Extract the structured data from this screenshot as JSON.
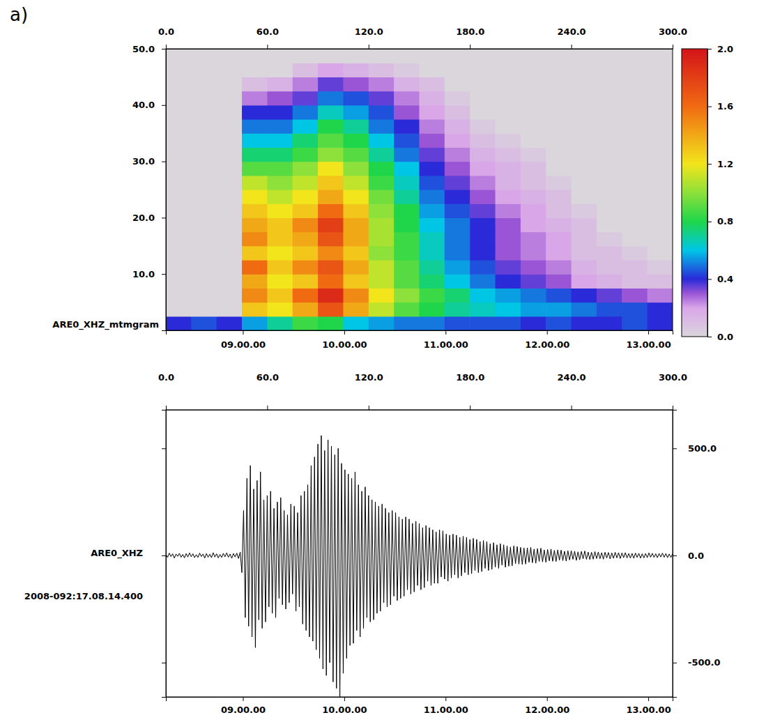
{
  "chart_data": [
    {
      "type": "heatmap",
      "title": "a)",
      "ylabel": "ARE0_XHZ_mtmgram",
      "xlim": [
        0,
        300
      ],
      "xticks": [
        {
          "value": 0,
          "label": "0.0"
        },
        {
          "value": 60,
          "label": "60.0"
        },
        {
          "value": 120,
          "label": "120.0"
        },
        {
          "value": 180,
          "label": "180.0"
        },
        {
          "value": 240,
          "label": "240.0"
        },
        {
          "value": 300,
          "label": "300.0"
        }
      ],
      "x2ticks": [
        {
          "value": 45.6,
          "label": "09.00.00"
        },
        {
          "value": 105.6,
          "label": "10.00.00"
        },
        {
          "value": 165.6,
          "label": "11.00.00"
        },
        {
          "value": 225.6,
          "label": "12.00.00"
        },
        {
          "value": 285.6,
          "label": "13.00.00"
        }
      ],
      "ylim": [
        0,
        50
      ],
      "yticks": [
        {
          "value": 10,
          "label": "10.0"
        },
        {
          "value": 20,
          "label": "20.0"
        },
        {
          "value": 30,
          "label": "30.0"
        },
        {
          "value": 40,
          "label": "40.0"
        },
        {
          "value": 50,
          "label": "50.0"
        }
      ],
      "x_edges": [
        0,
        15,
        30,
        45,
        60,
        75,
        90,
        105,
        120,
        135,
        150,
        165,
        180,
        195,
        210,
        225,
        240,
        255,
        270,
        285,
        300
      ],
      "y_edges": [
        0,
        2.5,
        5,
        7.5,
        10,
        12.5,
        15,
        17.5,
        20,
        22.5,
        25,
        27.5,
        30,
        32.5,
        35,
        37.5,
        40,
        42.5,
        45,
        47.5,
        50
      ],
      "cells": [
        [
          0.4,
          0.45,
          0.4,
          0.55,
          0.7,
          0.85,
          0.8,
          0.6,
          0.55,
          0.5,
          0.5,
          0.45,
          0.45,
          0.45,
          0.4,
          0.45,
          0.4,
          0.4,
          0.45,
          0.4
        ],
        [
          0,
          0,
          0,
          1.3,
          1.2,
          1.4,
          1.7,
          1.4,
          1.1,
          0.9,
          0.8,
          0.7,
          0.65,
          0.6,
          0.55,
          0.55,
          0.5,
          0.45,
          0.45,
          0.4
        ],
        [
          0,
          0,
          0,
          1.5,
          1.3,
          1.6,
          1.9,
          1.5,
          1.2,
          1.0,
          0.85,
          0.75,
          0.6,
          0.55,
          0.5,
          0.45,
          0.4,
          0.35,
          0.3,
          0.25
        ],
        [
          0,
          0,
          0,
          1.4,
          1.2,
          1.3,
          1.6,
          1.3,
          1.1,
          0.9,
          0.75,
          0.6,
          0.5,
          0.4,
          0.35,
          0.3,
          0.2,
          0.15,
          0.1,
          0.1
        ],
        [
          0,
          0,
          0,
          1.6,
          1.3,
          1.5,
          1.7,
          1.4,
          1.1,
          0.9,
          0.7,
          0.55,
          0.45,
          0.35,
          0.3,
          0.25,
          0.15,
          0.1,
          0.1,
          0.05
        ],
        [
          0,
          0,
          0,
          1.3,
          1.2,
          1.3,
          1.5,
          1.3,
          1.0,
          0.85,
          0.65,
          0.5,
          0.4,
          0.3,
          0.25,
          0.2,
          0.1,
          0.1,
          0.05,
          0
        ],
        [
          0,
          0,
          0,
          1.5,
          1.3,
          1.4,
          1.7,
          1.4,
          1.05,
          0.85,
          0.65,
          0.5,
          0.4,
          0.3,
          0.25,
          0.2,
          0.1,
          0.05,
          0,
          0
        ],
        [
          0,
          0,
          0,
          1.4,
          1.3,
          1.5,
          1.8,
          1.4,
          1.05,
          0.8,
          0.6,
          0.5,
          0.4,
          0.3,
          0.2,
          0.15,
          0.1,
          0,
          0,
          0
        ],
        [
          0,
          0,
          0,
          1.3,
          1.2,
          1.3,
          1.6,
          1.3,
          1.0,
          0.8,
          0.55,
          0.45,
          0.35,
          0.25,
          0.2,
          0.1,
          0.05,
          0,
          0,
          0
        ],
        [
          0,
          0,
          0,
          1.2,
          1.1,
          1.2,
          1.4,
          1.2,
          0.95,
          0.7,
          0.5,
          0.4,
          0.3,
          0.2,
          0.15,
          0.1,
          0,
          0,
          0,
          0
        ],
        [
          0,
          0,
          0,
          1.1,
          1.0,
          1.1,
          1.3,
          1.1,
          0.85,
          0.65,
          0.45,
          0.35,
          0.25,
          0.15,
          0.1,
          0.05,
          0,
          0,
          0,
          0
        ],
        [
          0,
          0,
          0,
          0.9,
          0.9,
          1.0,
          1.2,
          1.0,
          0.8,
          0.6,
          0.4,
          0.3,
          0.2,
          0.15,
          0.1,
          0,
          0,
          0,
          0,
          0
        ],
        [
          0,
          0,
          0,
          0.75,
          0.75,
          0.85,
          1.0,
          0.9,
          0.7,
          0.5,
          0.35,
          0.25,
          0.15,
          0.1,
          0.05,
          0,
          0,
          0,
          0,
          0
        ],
        [
          0,
          0,
          0,
          0.6,
          0.6,
          0.75,
          0.9,
          0.8,
          0.6,
          0.45,
          0.3,
          0.2,
          0.1,
          0.05,
          0,
          0,
          0,
          0,
          0,
          0
        ],
        [
          0,
          0,
          0,
          0.5,
          0.5,
          0.6,
          0.8,
          0.7,
          0.5,
          0.4,
          0.25,
          0.15,
          0.05,
          0,
          0,
          0,
          0,
          0,
          0,
          0
        ],
        [
          0,
          0,
          0,
          0.4,
          0.4,
          0.5,
          0.65,
          0.55,
          0.45,
          0.3,
          0.2,
          0.1,
          0,
          0,
          0,
          0,
          0,
          0,
          0,
          0
        ],
        [
          0,
          0,
          0,
          0.25,
          0.3,
          0.35,
          0.5,
          0.45,
          0.35,
          0.25,
          0.15,
          0.05,
          0,
          0,
          0,
          0,
          0,
          0,
          0,
          0
        ],
        [
          0,
          0,
          0,
          0.1,
          0.15,
          0.25,
          0.35,
          0.3,
          0.25,
          0.15,
          0.1,
          0,
          0,
          0,
          0,
          0,
          0,
          0,
          0,
          0
        ],
        [
          0,
          0,
          0,
          0,
          0,
          0.1,
          0.2,
          0.15,
          0.1,
          0.05,
          0,
          0,
          0,
          0,
          0,
          0,
          0,
          0,
          0,
          0
        ],
        [
          0,
          0,
          0,
          0,
          0,
          0,
          0,
          0,
          0,
          0,
          0,
          0,
          0,
          0,
          0,
          0,
          0,
          0,
          0,
          0
        ]
      ],
      "colorbar": {
        "range": [
          0,
          2
        ],
        "ticks": [
          {
            "value": 0,
            "label": "0.0"
          },
          {
            "value": 0.4,
            "label": "0.4"
          },
          {
            "value": 0.8,
            "label": "0.8"
          },
          {
            "value": 1.2,
            "label": "1.2"
          },
          {
            "value": 1.6,
            "label": "1.6"
          },
          {
            "value": 2,
            "label": "2.0"
          }
        ]
      }
    },
    {
      "type": "line",
      "ylabel": "ARE0_XHZ",
      "subtitle": "2008-092:17.08.14.400",
      "color": "#000000",
      "xlim": [
        0,
        300
      ],
      "xticks": [
        {
          "value": 0,
          "label": "0.0"
        },
        {
          "value": 60,
          "label": "60.0"
        },
        {
          "value": 120,
          "label": "120.0"
        },
        {
          "value": 180,
          "label": "180.0"
        },
        {
          "value": 240,
          "label": "240.0"
        },
        {
          "value": 300,
          "label": "300.0"
        }
      ],
      "x2ticks": [
        {
          "value": 45.6,
          "label": "09.00.00"
        },
        {
          "value": 105.6,
          "label": "10.00.00"
        },
        {
          "value": 165.6,
          "label": "11.00.00"
        },
        {
          "value": 225.6,
          "label": "12.00.00"
        },
        {
          "value": 285.6,
          "label": "13.00.00"
        }
      ],
      "ylim": [
        -660,
        680
      ],
      "yticks": [
        {
          "value": 500,
          "label": "500.0"
        },
        {
          "value": 0,
          "label": "0.0"
        },
        {
          "value": -500,
          "label": "-500.0"
        }
      ],
      "x": [
        0,
        1,
        2,
        3,
        4,
        5,
        6,
        7,
        8,
        9,
        10,
        11,
        12,
        13,
        14,
        15,
        16,
        17,
        18,
        19,
        20,
        21,
        22,
        23,
        24,
        25,
        26,
        27,
        28,
        29,
        30,
        31,
        32,
        33,
        34,
        35,
        36,
        37,
        38,
        39,
        40,
        41,
        42,
        43,
        44,
        45,
        46,
        47,
        48,
        49,
        50,
        51,
        52,
        53,
        54,
        55,
        56,
        57,
        58,
        59,
        60,
        61,
        62,
        63,
        64,
        65,
        66,
        67,
        68,
        69,
        70,
        71,
        72,
        73,
        74,
        75,
        76,
        77,
        78,
        79,
        80,
        81,
        82,
        83,
        84,
        85,
        86,
        87,
        88,
        89,
        90,
        91,
        92,
        93,
        94,
        95,
        96,
        97,
        98,
        99,
        100,
        101,
        102,
        103,
        104,
        105,
        106,
        107,
        108,
        109,
        110,
        111,
        112,
        113,
        114,
        115,
        116,
        117,
        118,
        119,
        120,
        121,
        122,
        123,
        124,
        125,
        126,
        127,
        128,
        129,
        130,
        131,
        132,
        133,
        134,
        135,
        136,
        137,
        138,
        139,
        140,
        141,
        142,
        143,
        144,
        145,
        146,
        147,
        148,
        149,
        150,
        151,
        152,
        153,
        154,
        155,
        156,
        157,
        158,
        159,
        160,
        161,
        162,
        163,
        164,
        165,
        166,
        167,
        168,
        169,
        170,
        171,
        172,
        173,
        174,
        175,
        176,
        177,
        178,
        179,
        180,
        181,
        182,
        183,
        184,
        185,
        186,
        187,
        188,
        189,
        190,
        191,
        192,
        193,
        194,
        195,
        196,
        197,
        198,
        199,
        200,
        201,
        202,
        203,
        204,
        205,
        206,
        207,
        208,
        209,
        210,
        211,
        212,
        213,
        214,
        215,
        216,
        217,
        218,
        219,
        220,
        221,
        222,
        223,
        224,
        225,
        226,
        227,
        228,
        229,
        230,
        231,
        232,
        233,
        234,
        235,
        236,
        237,
        238,
        239,
        240,
        241,
        242,
        243,
        244,
        245,
        246,
        247,
        248,
        249,
        250,
        251,
        252,
        253,
        254,
        255,
        256,
        257,
        258,
        259,
        260,
        261,
        262,
        263,
        264,
        265,
        266,
        267,
        268,
        269,
        270,
        271,
        272,
        273,
        274,
        275,
        276,
        277,
        278,
        279,
        280,
        281,
        282,
        283,
        284,
        285,
        286,
        287,
        288,
        289,
        290,
        291,
        292,
        293,
        294,
        295,
        296,
        297,
        298,
        299,
        300
      ],
      "values": [
        6,
        -9,
        11,
        -5,
        8,
        -12,
        7,
        -4,
        10,
        -8,
        5,
        -11,
        9,
        -7,
        12,
        -6,
        8,
        -10,
        4,
        -9,
        11,
        -5,
        7,
        -12,
        9,
        -8,
        6,
        -10,
        13,
        -7,
        8,
        -11,
        5,
        -9,
        10,
        -6,
        12,
        -8,
        7,
        -13,
        9,
        -7,
        11,
        -14,
        16,
        -80,
        210,
        -290,
        360,
        -330,
        420,
        -380,
        310,
        -430,
        350,
        -300,
        390,
        -340,
        260,
        -310,
        280,
        -240,
        300,
        -270,
        220,
        -290,
        250,
        -200,
        270,
        -230,
        210,
        -250,
        190,
        -220,
        240,
        -180,
        230,
        -260,
        200,
        -240,
        280,
        -320,
        300,
        -350,
        330,
        -380,
        420,
        -400,
        460,
        -440,
        520,
        -480,
        560,
        -530,
        490,
        -560,
        540,
        -500,
        510,
        -590,
        470,
        -620,
        500,
        -660,
        430,
        -550,
        400,
        -480,
        380,
        -420,
        360,
        -410,
        390,
        -350,
        330,
        -380,
        300,
        -340,
        320,
        -290,
        280,
        -310,
        260,
        -300,
        250,
        -270,
        230,
        -260,
        240,
        -220,
        220,
        -240,
        200,
        -230,
        210,
        -190,
        200,
        -210,
        180,
        -200,
        170,
        -190,
        180,
        -160,
        170,
        -180,
        150,
        -170,
        160,
        -140,
        150,
        -160,
        130,
        -150,
        140,
        -120,
        130,
        -140,
        120,
        -130,
        110,
        -130,
        120,
        -100,
        115,
        -110,
        100,
        -120,
        95,
        -105,
        100,
        -90,
        95,
        -105,
        85,
        -95,
        90,
        -80,
        85,
        -90,
        75,
        -85,
        80,
        -70,
        75,
        -80,
        65,
        -75,
        70,
        -60,
        65,
        -70,
        55,
        -65,
        60,
        -55,
        50,
        -60,
        55,
        -45,
        50,
        -55,
        45,
        -50,
        40,
        -48,
        45,
        -38,
        42,
        -40,
        38,
        -42,
        35,
        -40,
        36,
        -32,
        38,
        -34,
        30,
        -36,
        32,
        -28,
        34,
        -30,
        26,
        -32,
        28,
        -25,
        30,
        -27,
        24,
        -28,
        26,
        -22,
        25,
        -24,
        20,
        -26,
        22,
        -21,
        22,
        -18,
        20,
        -23,
        17,
        -20,
        19,
        -16,
        21,
        -18,
        16,
        -19,
        15,
        -17,
        18,
        -14,
        16,
        -15,
        13,
        -17,
        15,
        -12,
        14,
        -16,
        12,
        -13,
        15,
        -11,
        13,
        -14,
        12,
        -10,
        13,
        -11,
        9,
        -12,
        10,
        -13,
        11,
        -9,
        10,
        -12,
        8,
        -11,
        9,
        -10,
        12,
        -8,
        10,
        -9,
        8,
        -10,
        9,
        -7,
        11,
        -8,
        9,
        -10,
        7,
        -9,
        8
      ]
    }
  ]
}
